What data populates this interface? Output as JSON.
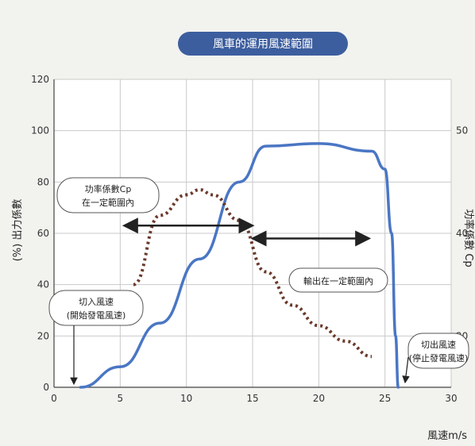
{
  "chart_data": {
    "type": "line",
    "title": "風車的運用風速範圍",
    "xlabel": "風速m/s",
    "ylabel": "(%) 出力係數",
    "right_ylabel": "功率係數 Cp",
    "xlim": [
      0,
      30
    ],
    "ylim": [
      0,
      120
    ],
    "x_ticks": [
      "0",
      "5",
      "10",
      "15",
      "20",
      "25",
      "30"
    ],
    "y_ticks": [
      "0",
      "20",
      "40",
      "60",
      "80",
      "100",
      "120"
    ],
    "right_ticks": [
      "20",
      "40",
      "50"
    ],
    "grid": true,
    "series": [
      {
        "style": "solid",
        "color": "#4a76c4",
        "x": [
          2,
          5,
          8,
          11,
          14,
          16,
          20,
          24,
          25,
          25.5,
          25.8,
          26
        ],
        "y": [
          0,
          8,
          25,
          50,
          80,
          94,
          95,
          92,
          85,
          60,
          20,
          0
        ]
      },
      {
        "style": "dotted",
        "color": "#6b3a2b",
        "x": [
          6,
          8,
          10,
          11,
          12,
          14,
          16,
          18,
          20,
          22,
          24
        ],
        "y": [
          40,
          67,
          75,
          77,
          75,
          65,
          45,
          32,
          24,
          18,
          12
        ]
      }
    ],
    "annotations": {
      "cp_range": {
        "lines": [
          "功率係數Cp",
          "在一定範圍內"
        ],
        "arrow_from": 5.3,
        "arrow_to": 15
      },
      "output_range": {
        "lines": [
          "輸出在一定範圍內"
        ],
        "arrow_from": 15,
        "arrow_to": 23.8
      },
      "cut_in": {
        "lines": [
          "切入風速",
          "(開始發電風速)"
        ],
        "x": 2
      },
      "cut_out": {
        "lines": [
          "切出風速",
          "(停止發電風速)"
        ],
        "x": 26
      }
    }
  }
}
